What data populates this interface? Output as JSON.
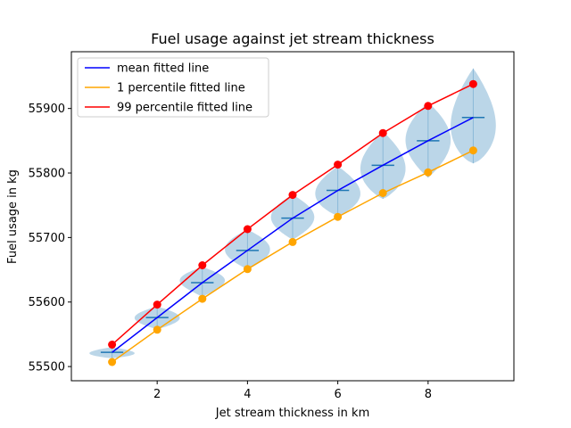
{
  "chart_data": {
    "type": "line",
    "title": "Fuel usage against jet stream thickness",
    "xlabel": "Jet stream thickness in km",
    "ylabel": "Fuel usage in kg",
    "xlim": [
      0.1,
      9.9
    ],
    "ylim": [
      55478,
      55988
    ],
    "xticks": [
      2,
      4,
      6,
      8
    ],
    "yticks": [
      55500,
      55600,
      55700,
      55800,
      55900
    ],
    "grid": false,
    "legend_position": "top-left",
    "x": [
      1,
      2,
      3,
      4,
      5,
      6,
      7,
      8,
      9
    ],
    "series": [
      {
        "name": "mean fitted line",
        "color": "#0000ff",
        "markers": false,
        "values": [
          55522,
          55576,
          55630,
          55680,
          55730,
          55773,
          55812,
          55850,
          55886
        ]
      },
      {
        "name": "1 percentile fitted line",
        "color": "#ffa500",
        "markers": true,
        "values": [
          55507,
          55557,
          55605,
          55651,
          55693,
          55732,
          55769,
          55801,
          55835
        ]
      },
      {
        "name": "99 percentile fitted line",
        "color": "#ff0000",
        "markers": true,
        "values": [
          55534,
          55596,
          55657,
          55713,
          55766,
          55813,
          55862,
          55904,
          55938
        ]
      }
    ],
    "violins": {
      "color": "#1f77b4",
      "positions": [
        1,
        2,
        3,
        4,
        5,
        6,
        7,
        8,
        9
      ],
      "means": [
        55522,
        55576,
        55630,
        55680,
        55730,
        55773,
        55812,
        55850,
        55886
      ],
      "mins": [
        55513,
        55558,
        55608,
        55651,
        55697,
        55734,
        55760,
        55793,
        55815
      ],
      "maxs": [
        55530,
        55593,
        55654,
        55712,
        55766,
        55810,
        55864,
        55909,
        55962
      ],
      "half_widths": [
        0.5,
        0.5,
        0.5,
        0.5,
        0.48,
        0.5,
        0.5,
        0.5,
        0.5
      ],
      "bulge": [
        0.45,
        0.5,
        0.55,
        0.5,
        0.5,
        0.45,
        0.45,
        0.5,
        0.4
      ]
    }
  }
}
